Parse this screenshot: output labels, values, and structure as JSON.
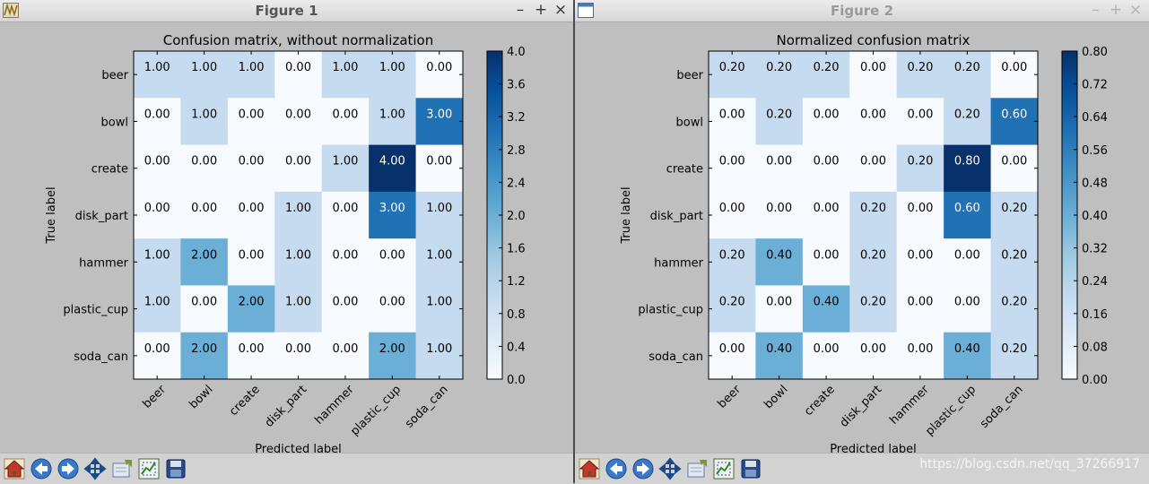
{
  "windows": [
    {
      "title": "Figure 1",
      "controls": {
        "minimize": "–",
        "maximize": "+",
        "close": "×"
      }
    },
    {
      "title": "Figure 2",
      "controls": {
        "minimize": "–",
        "maximize": "+",
        "close": "×"
      }
    }
  ],
  "toolbar": {
    "buttons": [
      "home-icon",
      "back-arrow-icon",
      "forward-arrow-icon",
      "pan-move-icon",
      "zoom-rectangle-icon",
      "configure-subplots-icon",
      "save-disk-icon"
    ]
  },
  "watermark": "https://blog.csdn.net/qq_37266917",
  "colors": {
    "low": "#f7fbff",
    "high": "#08306b",
    "text_dark": "#000000",
    "text_light": "#ffffff"
  },
  "chart_data": [
    {
      "type": "heatmap",
      "title": "Confusion matrix, without normalization",
      "xlabel": "Predicted label",
      "ylabel": "True label",
      "x_categories": [
        "beer",
        "bowl",
        "create",
        "disk_part",
        "hammer",
        "plastic_cup",
        "soda_can"
      ],
      "y_categories": [
        "beer",
        "bowl",
        "create",
        "disk_part",
        "hammer",
        "plastic_cup",
        "soda_can"
      ],
      "values": [
        [
          1.0,
          1.0,
          1.0,
          0.0,
          1.0,
          1.0,
          0.0
        ],
        [
          0.0,
          1.0,
          0.0,
          0.0,
          0.0,
          1.0,
          3.0
        ],
        [
          0.0,
          0.0,
          0.0,
          0.0,
          1.0,
          4.0,
          0.0
        ],
        [
          0.0,
          0.0,
          0.0,
          1.0,
          0.0,
          3.0,
          1.0
        ],
        [
          1.0,
          2.0,
          0.0,
          1.0,
          0.0,
          0.0,
          1.0
        ],
        [
          1.0,
          0.0,
          2.0,
          1.0,
          0.0,
          0.0,
          1.0
        ],
        [
          0.0,
          2.0,
          0.0,
          0.0,
          0.0,
          2.0,
          1.0
        ]
      ],
      "value_labels": [
        [
          "1.00",
          "1.00",
          "1.00",
          "0.00",
          "1.00",
          "1.00",
          "0.00"
        ],
        [
          "0.00",
          "1.00",
          "0.00",
          "0.00",
          "0.00",
          "1.00",
          "3.00"
        ],
        [
          "0.00",
          "0.00",
          "0.00",
          "0.00",
          "1.00",
          "4.00",
          "0.00"
        ],
        [
          "0.00",
          "0.00",
          "0.00",
          "1.00",
          "0.00",
          "3.00",
          "1.00"
        ],
        [
          "1.00",
          "2.00",
          "0.00",
          "1.00",
          "0.00",
          "0.00",
          "1.00"
        ],
        [
          "1.00",
          "0.00",
          "2.00",
          "1.00",
          "0.00",
          "0.00",
          "1.00"
        ],
        [
          "0.00",
          "2.00",
          "0.00",
          "0.00",
          "0.00",
          "2.00",
          "1.00"
        ]
      ],
      "colorbar": {
        "min": 0.0,
        "max": 4.0,
        "ticks": [
          "0.0",
          "0.4",
          "0.8",
          "1.2",
          "1.6",
          "2.0",
          "2.4",
          "2.8",
          "3.2",
          "3.6",
          "4.0"
        ]
      },
      "colormap": "Blues"
    },
    {
      "type": "heatmap",
      "title": "Normalized confusion matrix",
      "xlabel": "Predicted label",
      "ylabel": "True label",
      "x_categories": [
        "beer",
        "bowl",
        "create",
        "disk_part",
        "hammer",
        "plastic_cup",
        "soda_can"
      ],
      "y_categories": [
        "beer",
        "bowl",
        "create",
        "disk_part",
        "hammer",
        "plastic_cup",
        "soda_can"
      ],
      "values": [
        [
          0.2,
          0.2,
          0.2,
          0.0,
          0.2,
          0.2,
          0.0
        ],
        [
          0.0,
          0.2,
          0.0,
          0.0,
          0.0,
          0.2,
          0.6
        ],
        [
          0.0,
          0.0,
          0.0,
          0.0,
          0.2,
          0.8,
          0.0
        ],
        [
          0.0,
          0.0,
          0.0,
          0.2,
          0.0,
          0.6,
          0.2
        ],
        [
          0.2,
          0.4,
          0.0,
          0.2,
          0.0,
          0.0,
          0.2
        ],
        [
          0.2,
          0.0,
          0.4,
          0.2,
          0.0,
          0.0,
          0.2
        ],
        [
          0.0,
          0.4,
          0.0,
          0.0,
          0.0,
          0.4,
          0.2
        ]
      ],
      "value_labels": [
        [
          "0.20",
          "0.20",
          "0.20",
          "0.00",
          "0.20",
          "0.20",
          "0.00"
        ],
        [
          "0.00",
          "0.20",
          "0.00",
          "0.00",
          "0.00",
          "0.20",
          "0.60"
        ],
        [
          "0.00",
          "0.00",
          "0.00",
          "0.00",
          "0.20",
          "0.80",
          "0.00"
        ],
        [
          "0.00",
          "0.00",
          "0.00",
          "0.20",
          "0.00",
          "0.60",
          "0.20"
        ],
        [
          "0.20",
          "0.40",
          "0.00",
          "0.20",
          "0.00",
          "0.00",
          "0.20"
        ],
        [
          "0.20",
          "0.00",
          "0.40",
          "0.20",
          "0.00",
          "0.00",
          "0.20"
        ],
        [
          "0.00",
          "0.40",
          "0.00",
          "0.00",
          "0.00",
          "0.40",
          "0.20"
        ]
      ],
      "colorbar": {
        "min": 0.0,
        "max": 0.8,
        "ticks": [
          "0.00",
          "0.08",
          "0.16",
          "0.24",
          "0.32",
          "0.40",
          "0.48",
          "0.56",
          "0.64",
          "0.72",
          "0.80"
        ]
      },
      "colormap": "Blues"
    }
  ]
}
